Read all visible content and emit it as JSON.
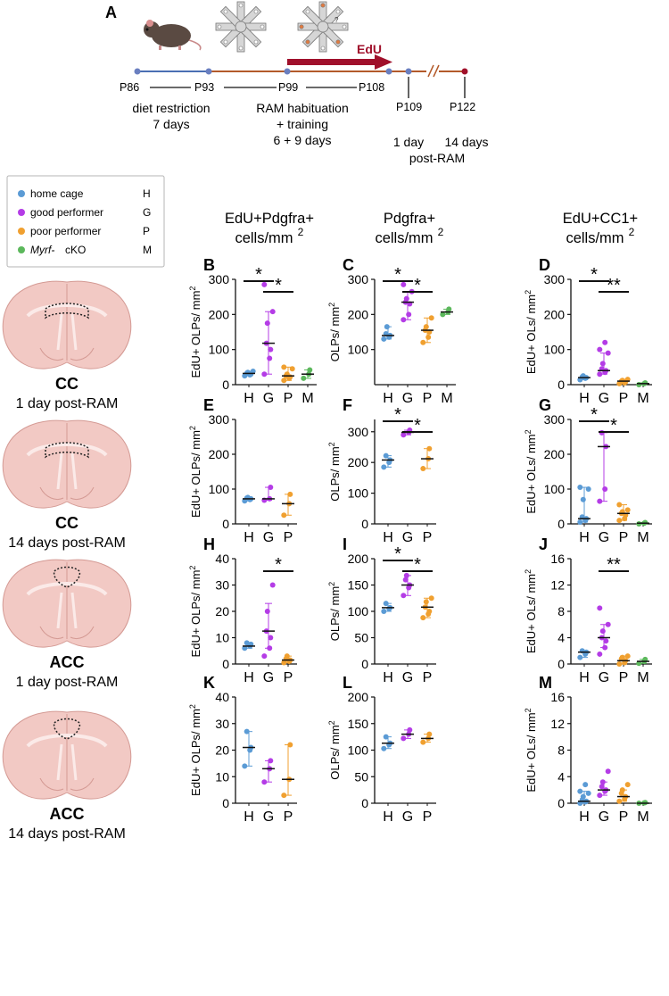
{
  "panel_a": {
    "letter": "A",
    "edu_label": "EdU",
    "timepoints": [
      "P86",
      "P93",
      "P99",
      "P108",
      "P109",
      "P122"
    ],
    "diet_text": [
      "diet restriction",
      "7 days"
    ],
    "ram_text": [
      "RAM habituation",
      "+ training",
      "6 + 9 days"
    ],
    "oneday_text": [
      "1 day"
    ],
    "fourteen_text": [
      "14 days"
    ],
    "post_text": "post-RAM",
    "maze_mark": "?"
  },
  "legend": {
    "items": [
      {
        "label": "home cage",
        "code": "H",
        "color": "#5b9bd5"
      },
      {
        "label": "good performer",
        "code": "G",
        "color": "#b43ce6"
      },
      {
        "label": "poor performer",
        "code": "P",
        "color": "#f0a030"
      },
      {
        "label": "cKO",
        "italic": "Myrf-",
        "code": "M",
        "color": "#5cb85c"
      }
    ]
  },
  "column_titles": [
    {
      "line1": "EdU+Pdgfra+",
      "line2": "cells/mm",
      "sup": "2"
    },
    {
      "line1": "Pdgfra+",
      "line2": "cells/mm",
      "sup": "2"
    },
    {
      "line1": "EdU+CC1+",
      "line2": "cells/mm",
      "sup": "2"
    }
  ],
  "rows": [
    {
      "region": "CC",
      "time": "1 day post-RAM"
    },
    {
      "region": "CC",
      "time": "14 days post-RAM"
    },
    {
      "region": "ACC",
      "time": "1 day post-RAM"
    },
    {
      "region": "ACC",
      "time": "14 days post-RAM"
    }
  ],
  "chart_data": [
    {
      "panel": "B",
      "type": "scatter",
      "ylabel": "EdU+ OLPs/ mm",
      "ylim": [
        0,
        300
      ],
      "yticks": [
        0,
        100,
        200,
        300
      ],
      "categories": [
        "H",
        "G",
        "P",
        "M"
      ],
      "series": [
        {
          "group": "H",
          "median": 32,
          "range": [
            25,
            38
          ],
          "points": [
            25,
            28,
            30,
            32,
            35,
            38
          ]
        },
        {
          "group": "G",
          "median": 118,
          "range": [
            30,
            208
          ],
          "points": [
            30,
            75,
            100,
            118,
            175,
            208,
            285
          ]
        },
        {
          "group": "P",
          "median": 25,
          "range": [
            12,
            50
          ],
          "points": [
            12,
            18,
            22,
            25,
            30,
            45,
            50
          ]
        },
        {
          "group": "M",
          "median": 30,
          "range": [
            18,
            42
          ],
          "points": [
            18,
            30,
            42
          ]
        }
      ],
      "sig": [
        {
          "from": "H",
          "to": "G",
          "label": "*"
        },
        {
          "from": "G",
          "to": "P",
          "label": "*"
        }
      ]
    },
    {
      "panel": "C",
      "type": "scatter",
      "ylabel": "OLPs/ mm",
      "ylim": [
        0,
        300
      ],
      "yticks": [
        100,
        200,
        300
      ],
      "categories": [
        "H",
        "G",
        "P",
        "M"
      ],
      "series": [
        {
          "group": "H",
          "median": 140,
          "range": [
            130,
            165
          ],
          "points": [
            130,
            135,
            140,
            145,
            165
          ]
        },
        {
          "group": "G",
          "median": 235,
          "range": [
            185,
            265
          ],
          "points": [
            185,
            200,
            230,
            235,
            245,
            265,
            285
          ]
        },
        {
          "group": "P",
          "median": 155,
          "range": [
            120,
            190
          ],
          "points": [
            120,
            135,
            150,
            155,
            165,
            190
          ]
        },
        {
          "group": "M",
          "median": 207,
          "range": [
            200,
            215
          ],
          "points": [
            200,
            207,
            215
          ]
        }
      ],
      "sig": [
        {
          "from": "H",
          "to": "G",
          "label": "*"
        },
        {
          "from": "G",
          "to": "P",
          "label": "*"
        }
      ]
    },
    {
      "panel": "D",
      "type": "scatter",
      "ylabel": "EdU+ OLs/ mm",
      "ylim": [
        0,
        300
      ],
      "yticks": [
        0,
        100,
        200,
        300
      ],
      "categories": [
        "H",
        "G",
        "P",
        "M"
      ],
      "series": [
        {
          "group": "H",
          "median": 20,
          "range": [
            14,
            25
          ],
          "points": [
            14,
            18,
            20,
            22,
            25
          ]
        },
        {
          "group": "G",
          "median": 40,
          "range": [
            30,
            90
          ],
          "points": [
            30,
            35,
            40,
            45,
            60,
            90,
            100,
            120
          ]
        },
        {
          "group": "P",
          "median": 10,
          "range": [
            3,
            15
          ],
          "points": [
            3,
            5,
            8,
            10,
            12,
            15
          ]
        },
        {
          "group": "M",
          "median": 3,
          "range": [
            0,
            5
          ],
          "points": [
            0,
            3,
            5
          ]
        }
      ],
      "sig": [
        {
          "from": "H",
          "to": "G",
          "label": "*"
        },
        {
          "from": "G",
          "to": "P",
          "label": "**"
        }
      ]
    },
    {
      "panel": "E",
      "type": "scatter",
      "ylabel": "EdU+ OLPs/ mm",
      "ylim": [
        0,
        300
      ],
      "yticks": [
        0,
        100,
        200,
        300
      ],
      "categories": [
        "H",
        "G",
        "P"
      ],
      "series": [
        {
          "group": "H",
          "median": 72,
          "range": [
            66,
            76
          ],
          "points": [
            66,
            70,
            72,
            74,
            76
          ]
        },
        {
          "group": "G",
          "median": 72,
          "range": [
            68,
            105
          ],
          "points": [
            68,
            72,
            105
          ]
        },
        {
          "group": "P",
          "median": 58,
          "range": [
            25,
            85
          ],
          "points": [
            25,
            58,
            85
          ]
        }
      ],
      "sig": []
    },
    {
      "panel": "F",
      "type": "scatter",
      "ylabel": "OLPs/ mm",
      "ylim": [
        0,
        340
      ],
      "yticks": [
        0,
        100,
        200,
        300
      ],
      "categories": [
        "H",
        "G",
        "P"
      ],
      "series": [
        {
          "group": "H",
          "median": 208,
          "range": [
            185,
            222
          ],
          "points": [
            185,
            200,
            208,
            222
          ]
        },
        {
          "group": "G",
          "median": 298,
          "range": [
            290,
            305
          ],
          "points": [
            290,
            298,
            305
          ]
        },
        {
          "group": "P",
          "median": 212,
          "range": [
            180,
            245
          ],
          "points": [
            180,
            212,
            245
          ]
        }
      ],
      "sig": [
        {
          "from": "H",
          "to": "G",
          "label": "*"
        },
        {
          "from": "G",
          "to": "P",
          "label": "*"
        }
      ]
    },
    {
      "panel": "G",
      "type": "scatter",
      "ylabel": "EdU+ OLs/ mm",
      "ylim": [
        0,
        300
      ],
      "yticks": [
        0,
        100,
        200,
        300
      ],
      "categories": [
        "H",
        "G",
        "P",
        "M"
      ],
      "series": [
        {
          "group": "H",
          "median": 15,
          "range": [
            5,
            105
          ],
          "points": [
            5,
            10,
            15,
            20,
            70,
            100,
            105
          ]
        },
        {
          "group": "G",
          "median": 222,
          "range": [
            65,
            262
          ],
          "points": [
            65,
            100,
            222,
            262
          ]
        },
        {
          "group": "P",
          "median": 30,
          "range": [
            10,
            55
          ],
          "points": [
            10,
            15,
            25,
            30,
            35,
            40,
            55
          ]
        },
        {
          "group": "M",
          "median": 2,
          "range": [
            0,
            4
          ],
          "points": [
            0,
            2,
            4
          ]
        }
      ],
      "sig": [
        {
          "from": "H",
          "to": "G",
          "label": "*"
        },
        {
          "from": "G",
          "to": "P",
          "label": "*"
        }
      ]
    },
    {
      "panel": "H",
      "type": "scatter",
      "ylabel": "EdU+ OLPs/ mm",
      "ylim": [
        0,
        40
      ],
      "yticks": [
        0,
        10,
        20,
        30,
        40
      ],
      "categories": [
        "H",
        "G",
        "P"
      ],
      "series": [
        {
          "group": "H",
          "median": 6.8,
          "range": [
            6,
            8
          ],
          "points": [
            6,
            6.8,
            7.5,
            8
          ]
        },
        {
          "group": "G",
          "median": 12.5,
          "range": [
            6,
            23
          ],
          "points": [
            3,
            6,
            10,
            12.5,
            20,
            30
          ]
        },
        {
          "group": "P",
          "median": 1.5,
          "range": [
            0.5,
            3
          ],
          "points": [
            0.5,
            1,
            1.5,
            2,
            3
          ]
        }
      ],
      "sig": [
        {
          "from": "G",
          "to": "P",
          "label": "*"
        }
      ]
    },
    {
      "panel": "I",
      "type": "scatter",
      "ylabel": "OLPs/ mm",
      "ylim": [
        0,
        200
      ],
      "yticks": [
        0,
        50,
        100,
        150,
        200
      ],
      "categories": [
        "H",
        "G",
        "P"
      ],
      "series": [
        {
          "group": "H",
          "median": 107,
          "range": [
            100,
            115
          ],
          "points": [
            100,
            105,
            107,
            115
          ]
        },
        {
          "group": "G",
          "median": 150,
          "range": [
            130,
            168
          ],
          "points": [
            130,
            145,
            150,
            160,
            168
          ]
        },
        {
          "group": "P",
          "median": 108,
          "range": [
            88,
            125
          ],
          "points": [
            88,
            95,
            100,
            108,
            118,
            125
          ]
        }
      ],
      "sig": [
        {
          "from": "H",
          "to": "G",
          "label": "*"
        },
        {
          "from": "G",
          "to": "P",
          "label": "*"
        }
      ]
    },
    {
      "panel": "J",
      "type": "scatter",
      "ylabel": "EdU+ OLs/ mm",
      "ylim": [
        0,
        16
      ],
      "yticks": [
        0,
        4,
        8,
        12,
        16
      ],
      "categories": [
        "H",
        "G",
        "P",
        "M"
      ],
      "series": [
        {
          "group": "H",
          "median": 1.8,
          "range": [
            1,
            2
          ],
          "points": [
            1,
            1.5,
            1.8,
            2
          ]
        },
        {
          "group": "G",
          "median": 4,
          "range": [
            2.5,
            6
          ],
          "points": [
            1.5,
            2.5,
            3.5,
            4,
            5,
            6,
            8.5
          ]
        },
        {
          "group": "P",
          "median": 0.5,
          "range": [
            0,
            1.2
          ],
          "points": [
            0,
            0.2,
            0.5,
            0.8,
            1.0,
            1.2
          ]
        },
        {
          "group": "M",
          "median": 0.4,
          "range": [
            0.1,
            0.7
          ],
          "points": [
            0.1,
            0.4,
            0.7
          ]
        }
      ],
      "sig": [
        {
          "from": "G",
          "to": "P",
          "label": "**"
        }
      ]
    },
    {
      "panel": "K",
      "type": "scatter",
      "ylabel": "EdU+ OLPs/ mm",
      "ylim": [
        0,
        40
      ],
      "yticks": [
        0,
        10,
        20,
        30,
        40
      ],
      "categories": [
        "H",
        "G",
        "P"
      ],
      "series": [
        {
          "group": "H",
          "median": 21,
          "range": [
            14,
            27
          ],
          "points": [
            14,
            20,
            21,
            27
          ]
        },
        {
          "group": "G",
          "median": 13,
          "range": [
            8,
            16
          ],
          "points": [
            8,
            13,
            16
          ]
        },
        {
          "group": "P",
          "median": 9,
          "range": [
            3,
            22
          ],
          "points": [
            3,
            9,
            22
          ]
        }
      ],
      "sig": []
    },
    {
      "panel": "L",
      "type": "scatter",
      "ylabel": "OLPs/ mm",
      "ylim": [
        0,
        200
      ],
      "yticks": [
        0,
        50,
        100,
        150,
        200
      ],
      "categories": [
        "H",
        "G",
        "P"
      ],
      "series": [
        {
          "group": "H",
          "median": 113,
          "range": [
            103,
            125
          ],
          "points": [
            103,
            110,
            113,
            125
          ]
        },
        {
          "group": "G",
          "median": 130,
          "range": [
            122,
            138
          ],
          "points": [
            122,
            130,
            138
          ]
        },
        {
          "group": "P",
          "median": 122,
          "range": [
            115,
            130
          ],
          "points": [
            115,
            122,
            130
          ]
        }
      ],
      "sig": []
    },
    {
      "panel": "M",
      "type": "scatter",
      "ylabel": "EdU+ OLs/ mm",
      "ylim": [
        0,
        16
      ],
      "yticks": [
        0,
        4,
        8,
        12,
        16
      ],
      "categories": [
        "H",
        "G",
        "P",
        "M"
      ],
      "series": [
        {
          "group": "H",
          "median": 0.3,
          "range": [
            0,
            1.8
          ],
          "points": [
            0,
            0.2,
            0.3,
            0.5,
            1.0,
            1.5,
            1.8,
            2.8
          ]
        },
        {
          "group": "G",
          "median": 2,
          "range": [
            1.2,
            3.2
          ],
          "points": [
            1.2,
            1.8,
            2,
            2.5,
            3.2,
            4.8
          ]
        },
        {
          "group": "P",
          "median": 1,
          "range": [
            0.3,
            2
          ],
          "points": [
            0.3,
            0.6,
            1,
            1.5,
            2,
            2.8
          ]
        },
        {
          "group": "M",
          "median": 0,
          "range": [
            0,
            0.1
          ],
          "points": [
            0,
            0.05,
            0.1
          ]
        }
      ],
      "sig": []
    }
  ]
}
